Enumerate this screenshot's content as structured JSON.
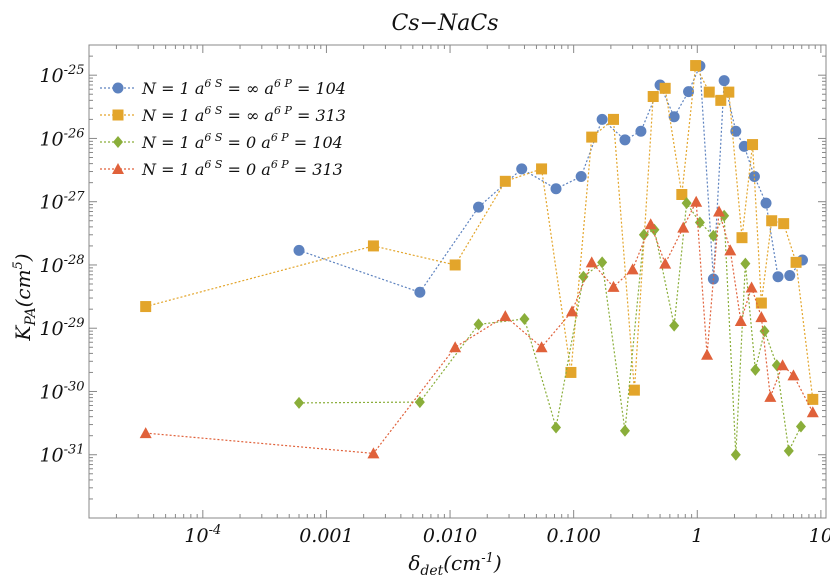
{
  "chart_data": {
    "type": "scatter",
    "title": "Cs−NaCs",
    "xlabel_main": "δ",
    "xlabel_sub": "det",
    "xlabel_rest": "(cm",
    "xlabel_sup": "-1",
    "xlabel_end": ")",
    "ylabel_main": "K",
    "ylabel_sub": "PA",
    "ylabel_rest": "(cm",
    "ylabel_sup": "5",
    "ylabel_end": ")",
    "x_scale": "log",
    "y_scale": "log",
    "xlim": [
      1.2e-05,
      11
    ],
    "ylim": [
      1e-32,
      3e-25
    ],
    "x_ticks": [
      {
        "label": "10",
        "sup": "-4",
        "value": 0.0001
      },
      {
        "label": "0.001",
        "value": 0.001
      },
      {
        "label": "0.010",
        "value": 0.01
      },
      {
        "label": "0.100",
        "value": 0.1
      },
      {
        "label": "1",
        "value": 1
      },
      {
        "label": "10",
        "value": 10
      }
    ],
    "y_ticks": [
      {
        "label": "10",
        "sup": "-31",
        "value": 1e-31
      },
      {
        "label": "10",
        "sup": "-30",
        "value": 1e-30
      },
      {
        "label": "10",
        "sup": "-29",
        "value": 1e-29
      },
      {
        "label": "10",
        "sup": "-28",
        "value": 1e-28
      },
      {
        "label": "10",
        "sup": "-27",
        "value": 1e-27
      },
      {
        "label": "10",
        "sup": "-26",
        "value": 1e-26
      },
      {
        "label": "10",
        "sup": "-25",
        "value": 1e-25
      }
    ],
    "grid": false,
    "legend_position": "top-left",
    "series": [
      {
        "name": "N = 1 a6S = ∞ a6P = 104",
        "legend": {
          "a": "N = 1 a",
          "b": "6 S",
          "c": " = ∞ a",
          "d": "6 P",
          "e": " = 104"
        },
        "color": "#5d82bf",
        "marker": "circle",
        "x": [
          0.0006,
          0.0057,
          0.017,
          0.038,
          0.072,
          0.115,
          0.17,
          0.26,
          0.35,
          0.5,
          0.65,
          0.85,
          1.05,
          1.35,
          1.65,
          2.05,
          2.4,
          2.9,
          3.6,
          4.5,
          5.6,
          7.1
        ],
        "y": [
          1.7e-28,
          3.7e-29,
          8.2e-28,
          3.3e-27,
          1.6e-27,
          2.5e-27,
          2e-26,
          9.5e-27,
          1.3e-26,
          7e-26,
          2.2e-26,
          5.5e-26,
          1.4e-25,
          6e-29,
          8.2e-26,
          1.3e-26,
          7.5e-27,
          2.5e-27,
          9.5e-28,
          6.5e-29,
          6.8e-29,
          1.2e-28
        ]
      },
      {
        "name": "N = 1 a6S = ∞ a6P = 313",
        "legend": {
          "a": "N = 1 a",
          "b": "6 S",
          "c": " = ∞ a",
          "d": "6 P",
          "e": " = 313"
        },
        "color": "#e3a52b",
        "marker": "square",
        "x": [
          3.45e-05,
          0.0024,
          0.011,
          0.028,
          0.055,
          0.095,
          0.14,
          0.21,
          0.31,
          0.44,
          0.55,
          0.75,
          0.97,
          1.25,
          1.55,
          1.8,
          2.3,
          2.8,
          3.3,
          4.0,
          5.0,
          6.3,
          8.6
        ],
        "y": [
          2.2e-29,
          2e-28,
          1e-28,
          2.1e-27,
          3.3e-27,
          2e-30,
          1.05e-26,
          2e-26,
          1.05e-30,
          4.6e-26,
          6.2e-26,
          1.3e-27,
          1.42e-25,
          5.4e-26,
          4e-26,
          5.4e-26,
          2.7e-28,
          8e-27,
          2.5e-29,
          5e-28,
          4.5e-28,
          1.1e-28,
          7.5e-31
        ]
      },
      {
        "name": "N = 1 a6S = 0 a6P = 104",
        "legend": {
          "a": "N = 1 a",
          "b": "6 S",
          "c": " = 0 a",
          "d": "6 P",
          "e": " = 104"
        },
        "color": "#8aae3a",
        "marker": "diamond",
        "x": [
          0.0006,
          0.0057,
          0.017,
          0.04,
          0.072,
          0.12,
          0.17,
          0.26,
          0.37,
          0.45,
          0.65,
          0.82,
          1.05,
          1.35,
          1.65,
          2.05,
          2.45,
          2.95,
          3.5,
          4.4,
          5.5,
          6.9
        ],
        "y": [
          6.6e-31,
          6.8e-31,
          1.15e-29,
          1.4e-29,
          2.7e-31,
          6.5e-29,
          1.1e-28,
          2.4e-31,
          3e-28,
          3.6e-28,
          1.1e-29,
          9.5e-28,
          4.7e-28,
          2.9e-28,
          6e-28,
          1e-31,
          1.05e-28,
          2.2e-30,
          9e-30,
          2.6e-30,
          1.15e-31,
          2.8e-31
        ]
      },
      {
        "name": "N = 1 a6S = 0 a6P = 313",
        "legend": {
          "a": "N = 1 a",
          "b": "6 S",
          "c": " = 0 a",
          "d": "6 P",
          "e": " = 313"
        },
        "color": "#e0613a",
        "marker": "triangle",
        "x": [
          3.45e-05,
          0.0024,
          0.011,
          0.028,
          0.055,
          0.097,
          0.14,
          0.21,
          0.3,
          0.42,
          0.55,
          0.77,
          0.98,
          1.2,
          1.5,
          1.85,
          2.25,
          2.75,
          3.3,
          3.9,
          4.9,
          6.0,
          8.6
        ],
        "y": [
          2.2e-31,
          1.05e-31,
          5e-30,
          1.55e-29,
          5e-30,
          1.85e-29,
          1.1e-28,
          4.5e-29,
          8.5e-29,
          4.4e-28,
          1.05e-28,
          3.9e-28,
          1e-27,
          3.8e-30,
          7e-28,
          1.7e-28,
          1.3e-29,
          4.4e-29,
          1.5e-29,
          8.2e-31,
          2.6e-30,
          1.8e-30,
          4.7e-31
        ]
      }
    ]
  }
}
